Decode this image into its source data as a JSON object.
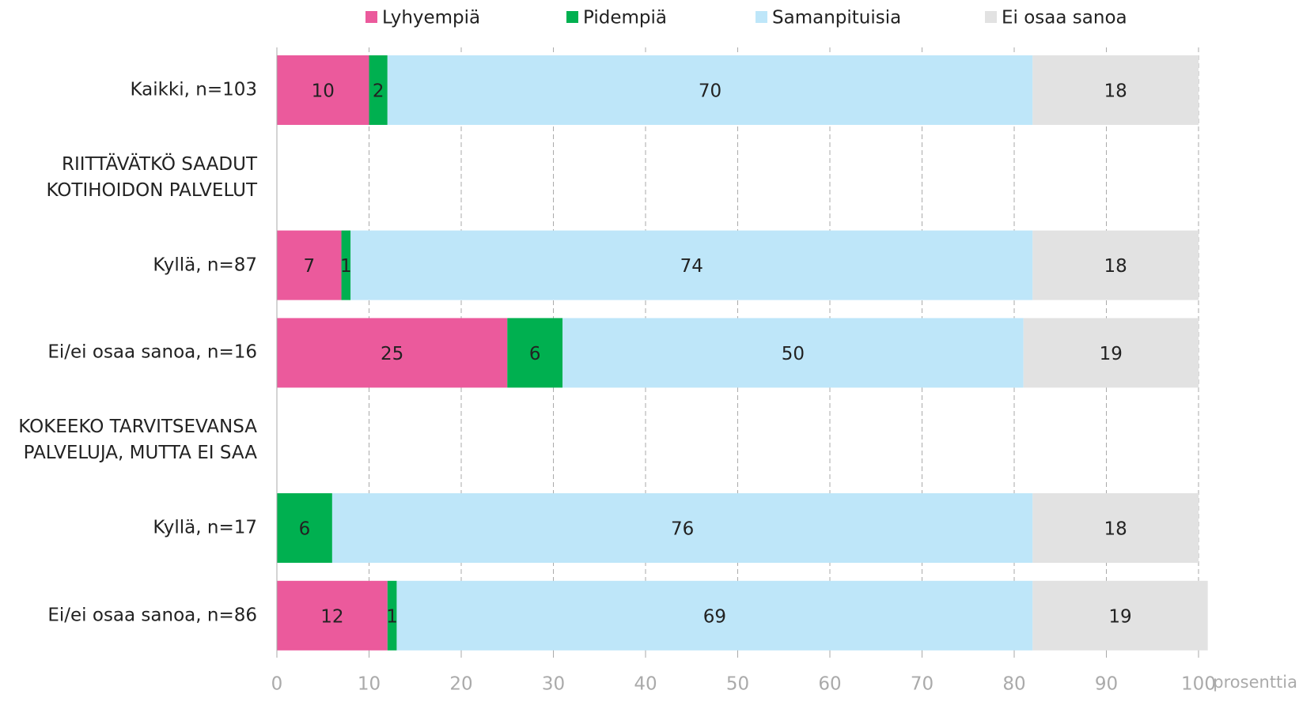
{
  "chart_data": {
    "type": "stacked-bar-horizontal",
    "categories": [
      "Kaikki, n=103",
      "RIITTÄVÄTKÖ SAADUT\nKOTIHOIDON PALVELUT",
      "Kyllä, n=87",
      "Ei/ei osaa sanoa, n=16",
      "KOKEEKO TARVITSEVANSA\nPALVELUJA, MUTTA EI SAA",
      "Kyllä, n=17",
      "Ei/ei osaa sanoa, n=86"
    ],
    "series": [
      {
        "name": "Lyhyempiä",
        "color": "#eb5a9c",
        "values": [
          10,
          null,
          7,
          25,
          null,
          0,
          12
        ]
      },
      {
        "name": "Pidempiä",
        "color": "#00b050",
        "values": [
          2,
          null,
          1,
          6,
          null,
          6,
          1
        ]
      },
      {
        "name": "Samanpituisia",
        "color": "#bee6f9",
        "values": [
          70,
          null,
          74,
          50,
          null,
          76,
          69
        ]
      },
      {
        "name": "Ei osaa sanoa",
        "color": "#e2e2e2",
        "values": [
          18,
          null,
          18,
          19,
          null,
          18,
          19
        ]
      }
    ],
    "xlabel": "prosenttia",
    "xlim": [
      0,
      100
    ],
    "xticks": [
      0,
      10,
      20,
      30,
      40,
      50,
      60,
      70,
      80,
      90,
      100
    ],
    "grid": true,
    "legend": "top"
  }
}
